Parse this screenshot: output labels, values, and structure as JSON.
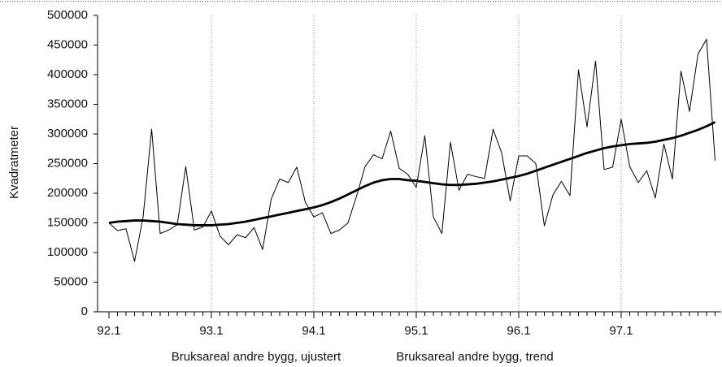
{
  "chart_data": {
    "type": "line",
    "y_label": "Kvadratmeter",
    "categories": [
      "92.1",
      null,
      null,
      null,
      null,
      null,
      null,
      null,
      null,
      null,
      null,
      null,
      "93.1",
      null,
      null,
      null,
      null,
      null,
      null,
      null,
      null,
      null,
      null,
      null,
      "94.1",
      null,
      null,
      null,
      null,
      null,
      null,
      null,
      null,
      null,
      null,
      null,
      "95.1",
      null,
      null,
      null,
      null,
      null,
      null,
      null,
      null,
      null,
      null,
      null,
      "96.1",
      null,
      null,
      null,
      null,
      null,
      null,
      null,
      null,
      null,
      null,
      null,
      "97.1",
      null,
      null,
      null,
      null,
      null,
      null,
      null,
      null,
      null,
      null,
      null
    ],
    "series": [
      {
        "name": "Bruksareal andre bygg, ujustert",
        "color": "#000000",
        "values": [
          150000,
          137000,
          140000,
          85000,
          160000,
          308000,
          132000,
          138000,
          147000,
          245000,
          138000,
          143000,
          170000,
          128000,
          113000,
          130000,
          125000,
          142000,
          105000,
          190000,
          224000,
          218000,
          244000,
          185000,
          160000,
          167000,
          132000,
          138000,
          150000,
          195000,
          245000,
          265000,
          258000,
          305000,
          242000,
          232000,
          210000,
          297000,
          160000,
          132000,
          286000,
          205000,
          232000,
          228000,
          225000,
          308000,
          268000,
          187000,
          263000,
          263000,
          250000,
          145000,
          197000,
          220000,
          196000,
          408000,
          312000,
          423000,
          240000,
          244000,
          325000,
          245000,
          218000,
          238000,
          192000,
          283000,
          224000,
          406000,
          338000,
          435000,
          460000,
          255000
        ]
      },
      {
        "name": "Bruksareal andre bygg, trend",
        "color": "#000000",
        "values": [
          150000,
          152000,
          153000,
          154000,
          154000,
          153000,
          152000,
          150000,
          148000,
          147000,
          146000,
          146000,
          146000,
          147000,
          148000,
          150000,
          152000,
          155000,
          158000,
          161000,
          164000,
          167000,
          170000,
          173000,
          176000,
          180000,
          185000,
          191000,
          198000,
          205000,
          212000,
          218000,
          222000,
          224000,
          224000,
          222000,
          221000,
          219000,
          217000,
          215000,
          214000,
          214000,
          215000,
          216000,
          218000,
          220000,
          223000,
          226000,
          229000,
          233000,
          238000,
          243000,
          248000,
          253000,
          258000,
          263000,
          268000,
          272000,
          276000,
          279000,
          281000,
          283000,
          284000,
          285000,
          287000,
          290000,
          293000,
          297000,
          302000,
          307000,
          313000,
          320000
        ]
      }
    ],
    "ylim": [
      0,
      500000
    ],
    "yticks": [
      0,
      50000,
      100000,
      150000,
      200000,
      250000,
      300000,
      350000,
      400000,
      450000,
      500000
    ],
    "grid": true
  }
}
